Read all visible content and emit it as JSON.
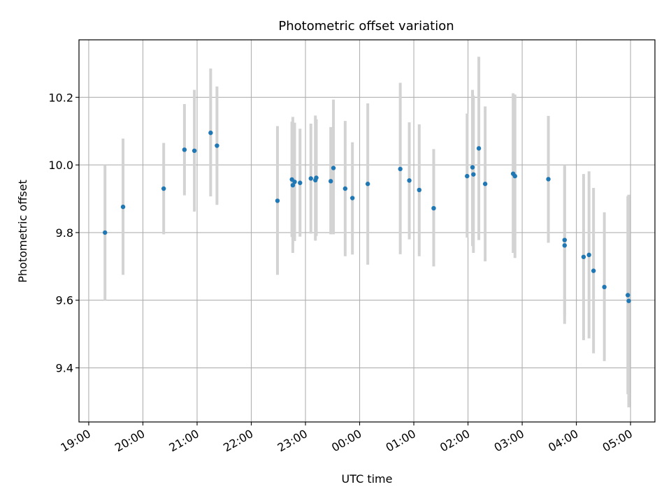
{
  "chart_data": {
    "type": "scatter",
    "title": "Photometric offset variation",
    "xlabel": "UTC time",
    "ylabel": "Photometric offset",
    "x_tick_labels": [
      "19:00",
      "20:00",
      "21:00",
      "22:00",
      "23:00",
      "00:00",
      "01:00",
      "02:00",
      "03:00",
      "04:00",
      "05:00"
    ],
    "y_tick_labels": [
      "9.4",
      "9.6",
      "9.8",
      "10.0",
      "10.2"
    ],
    "y_ticks": [
      9.4,
      9.6,
      9.8,
      10.0,
      10.2
    ],
    "x_tick_hours": [
      0,
      1,
      2,
      3,
      4,
      5,
      6,
      7,
      8,
      9,
      10
    ],
    "xlim_hours": [
      -0.18,
      10.45
    ],
    "ylim": [
      9.24,
      10.37
    ],
    "grid": true,
    "marker_color": "#1f77b4",
    "errorbar_color": "#d3d3d3",
    "series": [
      {
        "points": [
          {
            "t": "19:18",
            "y": 9.8,
            "lo": 9.6,
            "hi": 10.0
          },
          {
            "t": "19:38",
            "y": 9.876,
            "lo": 9.675,
            "hi": 10.078
          },
          {
            "t": "20:23",
            "y": 9.93,
            "lo": 9.795,
            "hi": 10.065
          },
          {
            "t": "20:46",
            "y": 10.045,
            "lo": 9.91,
            "hi": 10.18
          },
          {
            "t": "20:57",
            "y": 10.042,
            "lo": 9.862,
            "hi": 10.222
          },
          {
            "t": "21:15",
            "y": 10.095,
            "lo": 9.907,
            "hi": 10.285
          },
          {
            "t": "21:22",
            "y": 10.057,
            "lo": 9.882,
            "hi": 10.232
          },
          {
            "t": "22:29",
            "y": 9.894,
            "lo": 9.675,
            "hi": 10.115
          },
          {
            "t": "22:45",
            "y": 9.957,
            "lo": 9.787,
            "hi": 10.128
          },
          {
            "t": "22:46",
            "y": 9.94,
            "lo": 9.74,
            "hi": 10.142
          },
          {
            "t": "22:48",
            "y": 9.95,
            "lo": 9.775,
            "hi": 10.125
          },
          {
            "t": "22:54",
            "y": 9.947,
            "lo": 9.788,
            "hi": 10.107
          },
          {
            "t": "23:06",
            "y": 9.96,
            "lo": 9.797,
            "hi": 10.122
          },
          {
            "t": "23:11",
            "y": 9.955,
            "lo": 9.776,
            "hi": 10.146
          },
          {
            "t": "23:12",
            "y": 9.962,
            "lo": 9.79,
            "hi": 10.135
          },
          {
            "t": "23:28",
            "y": 9.952,
            "lo": 9.795,
            "hi": 10.112
          },
          {
            "t": "23:31",
            "y": 9.991,
            "lo": 9.795,
            "hi": 10.193
          },
          {
            "t": "23:44",
            "y": 9.93,
            "lo": 9.73,
            "hi": 10.13
          },
          {
            "t": "23:52",
            "y": 9.902,
            "lo": 9.735,
            "hi": 10.067
          },
          {
            "t": "00:09",
            "y": 9.944,
            "lo": 9.705,
            "hi": 10.182
          },
          {
            "t": "00:45",
            "y": 9.988,
            "lo": 9.736,
            "hi": 10.243
          },
          {
            "t": "00:55",
            "y": 9.954,
            "lo": 9.78,
            "hi": 10.126
          },
          {
            "t": "01:06",
            "y": 9.926,
            "lo": 9.73,
            "hi": 10.12
          },
          {
            "t": "01:22",
            "y": 9.872,
            "lo": 9.7,
            "hi": 10.047
          },
          {
            "t": "01:59",
            "y": 9.967,
            "lo": 9.785,
            "hi": 10.152
          },
          {
            "t": "02:05",
            "y": 9.993,
            "lo": 9.76,
            "hi": 10.222
          },
          {
            "t": "02:06",
            "y": 9.972,
            "lo": 9.74,
            "hi": 10.205
          },
          {
            "t": "02:12",
            "y": 10.049,
            "lo": 9.778,
            "hi": 10.32
          },
          {
            "t": "02:19",
            "y": 9.944,
            "lo": 9.715,
            "hi": 10.173
          },
          {
            "t": "02:50",
            "y": 9.974,
            "lo": 9.74,
            "hi": 10.212
          },
          {
            "t": "02:52",
            "y": 9.967,
            "lo": 9.725,
            "hi": 10.208
          },
          {
            "t": "03:29",
            "y": 9.958,
            "lo": 9.77,
            "hi": 10.145
          },
          {
            "t": "03:47",
            "y": 9.778,
            "lo": 9.555,
            "hi": 10.0
          },
          {
            "t": "03:47",
            "y": 9.762,
            "lo": 9.53,
            "hi": 9.995
          },
          {
            "t": "04:08",
            "y": 9.728,
            "lo": 9.482,
            "hi": 9.973
          },
          {
            "t": "04:14",
            "y": 9.734,
            "lo": 9.487,
            "hi": 9.981
          },
          {
            "t": "04:19",
            "y": 9.687,
            "lo": 9.443,
            "hi": 9.932
          },
          {
            "t": "04:31",
            "y": 9.639,
            "lo": 9.42,
            "hi": 9.86
          },
          {
            "t": "04:57",
            "y": 9.615,
            "lo": 9.322,
            "hi": 9.908
          },
          {
            "t": "04:58",
            "y": 9.598,
            "lo": 9.283,
            "hi": 9.912
          }
        ]
      }
    ]
  }
}
